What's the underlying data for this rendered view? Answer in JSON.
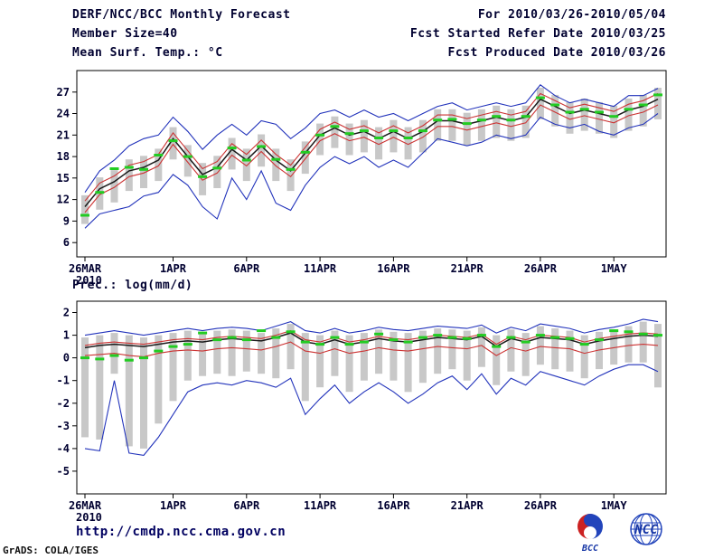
{
  "header": {
    "title": "DERF/NCC/BCC Monthly Forecast",
    "member_size": "Member Size=40",
    "for_range": "For 2010/03/26-2010/05/04",
    "fcst_started": "Fcst Started Refer Date 2010/03/25",
    "fcst_produced": "Fcst Produced Date 2010/03/26"
  },
  "footer": {
    "url": "http://cmdp.ncc.cma.gov.cn",
    "credit": "GrADS: COLA/IGES",
    "logo_bcc": "BCC",
    "logo_ncc": "NCC"
  },
  "colors": {
    "blue": "#2233bb",
    "red": "#cc3333",
    "black": "#1a1a1a",
    "green": "#22cc22",
    "bar": "#c8c8c8",
    "frame": "#000000",
    "text": "#000030"
  },
  "chart_data": [
    {
      "type": "line",
      "name": "temperature",
      "title": "Mean Surf. Temp.: °C",
      "ylim": [
        4,
        30
      ],
      "yticks": [
        27,
        24,
        21,
        18,
        15,
        12,
        9,
        6
      ],
      "n_days": 40,
      "x_tick_labels": [
        "26MAR",
        "1APR",
        "6APR",
        "11APR",
        "16APR",
        "21APR",
        "26APR",
        "1MAY"
      ],
      "x_tick_days": [
        0,
        6,
        11,
        16,
        21,
        26,
        31,
        36
      ],
      "x_sub_label": "2010",
      "legend_position": "none",
      "grid": false,
      "series": [
        {
          "name": "ensemble-max",
          "color": "blue",
          "values": [
            13.0,
            16.0,
            17.5,
            19.5,
            20.5,
            21.0,
            23.5,
            21.5,
            19.0,
            21.0,
            22.5,
            21.0,
            23.0,
            22.5,
            20.5,
            22.0,
            24.0,
            24.5,
            23.5,
            24.5,
            23.5,
            24.0,
            23.0,
            24.0,
            25.0,
            25.5,
            24.5,
            25.0,
            25.5,
            25.0,
            25.5,
            28.0,
            26.5,
            25.5,
            26.0,
            25.5,
            25.0,
            26.5,
            26.5,
            27.5
          ]
        },
        {
          "name": "upper-quartile",
          "color": "red",
          "values": [
            11.8,
            14.3,
            15.3,
            16.8,
            17.3,
            18.3,
            21.3,
            18.8,
            16.3,
            17.3,
            19.8,
            18.3,
            20.3,
            18.3,
            16.8,
            19.3,
            21.8,
            22.8,
            21.8,
            22.3,
            21.3,
            22.3,
            21.3,
            22.3,
            23.8,
            23.8,
            23.3,
            23.8,
            24.3,
            23.8,
            24.3,
            26.8,
            25.8,
            24.8,
            25.3,
            24.8,
            24.3,
            25.3,
            25.8,
            26.8
          ]
        },
        {
          "name": "ensemble-mean",
          "color": "black",
          "values": [
            11.0,
            13.5,
            14.5,
            16.0,
            16.5,
            17.5,
            20.5,
            18.0,
            15.5,
            16.5,
            19.0,
            17.5,
            19.5,
            17.5,
            16.0,
            18.5,
            21.0,
            22.0,
            21.0,
            21.5,
            20.5,
            21.5,
            20.5,
            21.5,
            23.0,
            23.0,
            22.5,
            23.0,
            23.5,
            23.0,
            23.5,
            26.0,
            25.0,
            24.0,
            24.5,
            24.0,
            23.5,
            24.5,
            25.0,
            26.0
          ]
        },
        {
          "name": "lower-quartile",
          "color": "red",
          "values": [
            10.2,
            12.7,
            13.7,
            15.2,
            15.7,
            16.7,
            19.7,
            17.2,
            14.7,
            15.7,
            18.2,
            16.7,
            18.7,
            16.7,
            15.2,
            17.7,
            20.2,
            21.2,
            20.2,
            20.7,
            19.7,
            20.7,
            19.7,
            20.7,
            22.2,
            22.2,
            21.7,
            22.2,
            22.7,
            22.2,
            22.7,
            25.2,
            24.2,
            23.2,
            23.7,
            23.2,
            22.7,
            23.7,
            24.2,
            25.2
          ]
        },
        {
          "name": "ensemble-min",
          "color": "blue",
          "values": [
            8.0,
            10.0,
            10.5,
            11.0,
            12.5,
            13.0,
            15.5,
            14.0,
            11.0,
            9.3,
            15.0,
            12.0,
            16.0,
            11.5,
            10.5,
            14.0,
            16.5,
            18.0,
            17.0,
            18.0,
            16.5,
            17.5,
            16.5,
            18.5,
            20.5,
            20.0,
            19.5,
            20.0,
            21.0,
            20.5,
            21.0,
            23.5,
            22.5,
            22.0,
            22.5,
            21.5,
            21.0,
            22.0,
            22.5,
            24.0
          ]
        }
      ],
      "bars": {
        "low": [
          8.6,
          10.6,
          11.6,
          13.2,
          13.6,
          14.6,
          17.6,
          15.2,
          12.6,
          13.6,
          16.2,
          14.6,
          16.6,
          14.6,
          13.2,
          15.6,
          18.2,
          19.2,
          18.2,
          18.6,
          17.6,
          18.6,
          17.6,
          18.6,
          20.2,
          20.2,
          19.6,
          20.2,
          20.6,
          20.2,
          20.6,
          23.2,
          22.2,
          21.2,
          21.6,
          21.2,
          20.6,
          21.6,
          22.2,
          23.2
        ],
        "high": [
          12.6,
          15.1,
          16.1,
          17.6,
          18.1,
          19.1,
          22.1,
          19.6,
          17.1,
          18.1,
          20.6,
          19.1,
          21.1,
          19.1,
          17.6,
          20.1,
          22.6,
          23.6,
          22.6,
          23.1,
          22.1,
          23.1,
          22.1,
          23.1,
          24.6,
          24.6,
          24.1,
          24.6,
          25.1,
          24.6,
          25.1,
          27.6,
          26.6,
          25.6,
          26.1,
          25.6,
          25.1,
          26.1,
          26.6,
          27.6
        ]
      },
      "markers": {
        "name": "observation",
        "color": "green",
        "values": [
          9.8,
          13.0,
          16.3,
          16.5,
          16.2,
          18.2,
          20.2,
          18.0,
          15.2,
          16.4,
          19.2,
          17.5,
          19.4,
          17.6,
          16.2,
          18.6,
          21.0,
          22.2,
          21.2,
          21.6,
          20.6,
          21.6,
          20.6,
          21.6,
          23.1,
          23.2,
          22.6,
          23.1,
          23.6,
          23.1,
          23.6,
          26.2,
          25.2,
          24.2,
          24.6,
          24.2,
          23.6,
          24.6,
          25.2,
          26.6
        ]
      }
    },
    {
      "type": "line",
      "name": "precipitation",
      "title": "Prec.: log(mm/d)",
      "ylim": [
        -6,
        2.5
      ],
      "yticks": [
        2,
        1,
        0,
        -1,
        -2,
        -3,
        -4,
        -5
      ],
      "n_days": 40,
      "x_tick_labels": [
        "26MAR",
        "1APR",
        "6APR",
        "11APR",
        "16APR",
        "21APR",
        "26APR",
        "1MAY"
      ],
      "x_tick_days": [
        0,
        6,
        11,
        16,
        21,
        26,
        31,
        36
      ],
      "x_sub_label": "2010",
      "legend_position": "none",
      "grid": false,
      "series": [
        {
          "name": "ensemble-max",
          "color": "blue",
          "values": [
            1.0,
            1.1,
            1.2,
            1.1,
            1.0,
            1.1,
            1.2,
            1.3,
            1.2,
            1.3,
            1.35,
            1.3,
            1.2,
            1.4,
            1.6,
            1.2,
            1.1,
            1.3,
            1.1,
            1.2,
            1.35,
            1.25,
            1.2,
            1.3,
            1.4,
            1.35,
            1.3,
            1.45,
            1.1,
            1.35,
            1.2,
            1.5,
            1.4,
            1.3,
            1.1,
            1.25,
            1.35,
            1.5,
            1.7,
            1.6
          ]
        },
        {
          "name": "upper-quartile",
          "color": "red",
          "values": [
            0.55,
            0.65,
            0.7,
            0.65,
            0.6,
            0.7,
            0.8,
            0.85,
            0.8,
            0.9,
            0.95,
            0.9,
            0.85,
            1.0,
            1.2,
            0.8,
            0.7,
            0.9,
            0.7,
            0.8,
            0.95,
            0.85,
            0.8,
            0.9,
            1.0,
            0.95,
            0.9,
            1.05,
            0.6,
            0.95,
            0.8,
            1.0,
            0.95,
            0.9,
            0.7,
            0.85,
            0.95,
            1.05,
            1.1,
            1.05
          ]
        },
        {
          "name": "ensemble-mean",
          "color": "black",
          "values": [
            0.45,
            0.55,
            0.6,
            0.55,
            0.5,
            0.6,
            0.7,
            0.75,
            0.7,
            0.8,
            0.85,
            0.8,
            0.75,
            0.9,
            1.1,
            0.7,
            0.6,
            0.8,
            0.6,
            0.7,
            0.85,
            0.75,
            0.7,
            0.8,
            0.9,
            0.85,
            0.8,
            0.95,
            0.5,
            0.85,
            0.7,
            0.9,
            0.85,
            0.8,
            0.6,
            0.75,
            0.85,
            0.95,
            1.0,
            0.95
          ]
        },
        {
          "name": "lower-quartile",
          "color": "red",
          "values": [
            0.1,
            0.15,
            0.2,
            0.1,
            0.05,
            0.2,
            0.3,
            0.35,
            0.3,
            0.4,
            0.45,
            0.4,
            0.35,
            0.5,
            0.7,
            0.3,
            0.2,
            0.4,
            0.2,
            0.3,
            0.45,
            0.35,
            0.3,
            0.4,
            0.5,
            0.45,
            0.4,
            0.55,
            0.1,
            0.45,
            0.3,
            0.5,
            0.45,
            0.4,
            0.2,
            0.35,
            0.45,
            0.55,
            0.6,
            0.55
          ]
        },
        {
          "name": "ensemble-min",
          "color": "blue",
          "values": [
            -4.0,
            -4.1,
            -1.0,
            -4.2,
            -4.3,
            -3.5,
            -2.5,
            -1.5,
            -1.2,
            -1.1,
            -1.2,
            -1.0,
            -1.1,
            -1.3,
            -0.9,
            -2.5,
            -1.8,
            -1.2,
            -2.0,
            -1.5,
            -1.1,
            -1.5,
            -2.0,
            -1.6,
            -1.1,
            -0.8,
            -1.4,
            -0.7,
            -1.6,
            -0.9,
            -1.2,
            -0.6,
            -0.8,
            -1.0,
            -1.2,
            -0.8,
            -0.5,
            -0.3,
            -0.3,
            -0.6
          ]
        }
      ],
      "bars": {
        "low": [
          -3.5,
          -3.6,
          -0.7,
          -3.9,
          -4.0,
          -2.9,
          -1.9,
          -1.0,
          -0.8,
          -0.7,
          -0.8,
          -0.6,
          -0.7,
          -0.9,
          -0.5,
          -1.9,
          -1.3,
          -0.8,
          -1.5,
          -1.0,
          -0.7,
          -1.0,
          -1.5,
          -1.1,
          -0.7,
          -0.5,
          -1.0,
          -0.4,
          -1.2,
          -0.6,
          -0.8,
          -0.3,
          -0.5,
          -0.6,
          -0.9,
          -0.5,
          -0.3,
          -0.2,
          -0.2,
          -1.3
        ],
        "high": [
          0.9,
          1.0,
          1.1,
          1.0,
          0.9,
          1.0,
          1.1,
          1.2,
          1.1,
          1.2,
          1.25,
          1.2,
          1.1,
          1.3,
          1.5,
          1.1,
          1.0,
          1.2,
          1.0,
          1.1,
          1.25,
          1.15,
          1.1,
          1.2,
          1.3,
          1.25,
          1.2,
          1.35,
          1.0,
          1.25,
          1.1,
          1.4,
          1.3,
          1.2,
          1.0,
          1.15,
          1.25,
          1.4,
          1.6,
          1.5
        ]
      },
      "markers": {
        "name": "observation",
        "color": "green",
        "values": [
          0.0,
          -0.05,
          0.1,
          -0.1,
          0.0,
          0.3,
          0.5,
          0.6,
          1.1,
          0.8,
          0.9,
          0.8,
          1.2,
          0.9,
          1.15,
          0.7,
          0.6,
          0.9,
          0.6,
          0.7,
          1.05,
          0.8,
          0.7,
          0.9,
          1.0,
          0.9,
          0.85,
          1.0,
          0.5,
          0.9,
          0.7,
          1.0,
          0.9,
          0.85,
          0.6,
          0.8,
          1.2,
          1.15,
          1.05,
          1.0
        ]
      }
    }
  ]
}
